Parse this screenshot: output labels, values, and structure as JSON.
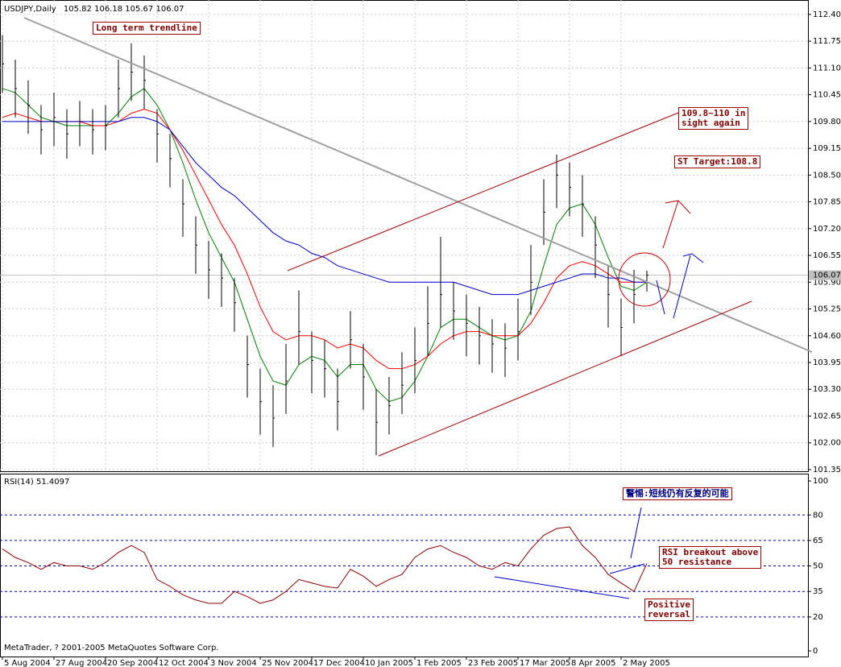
{
  "chart_data": [
    {
      "type": "ohlc",
      "title": "USDJPY,Daily",
      "last_bar": {
        "open": 105.82,
        "high": 106.18,
        "low": 105.67,
        "close": 106.07
      },
      "x": [
        0,
        4,
        8,
        12,
        16,
        20,
        24,
        28,
        32,
        36,
        40,
        44,
        48,
        52,
        56,
        60,
        64,
        68,
        72,
        76,
        80,
        84,
        88,
        92,
        96,
        100,
        104,
        108,
        112,
        116,
        120,
        124,
        128,
        132,
        136,
        140,
        144,
        148,
        152,
        156,
        160,
        164,
        168,
        172,
        176,
        180,
        184,
        188,
        192,
        196,
        200
      ],
      "high": [
        111.9,
        111.3,
        110.8,
        110.2,
        110.5,
        110.1,
        110.3,
        110.1,
        110.2,
        111.3,
        111.7,
        111.4,
        110.1,
        109.5,
        108.4,
        107.5,
        106.9,
        106.6,
        106.0,
        104.6,
        103.8,
        103.4,
        104.4,
        105.7,
        104.7,
        104.5,
        103.8,
        105.2,
        104.4,
        103.3,
        103.6,
        104.2,
        104.8,
        105.8,
        107.0,
        105.9,
        105.6,
        105.3,
        105.0,
        104.9,
        105.5,
        106.8,
        108.4,
        109.0,
        108.8,
        108.5,
        107.5,
        106.3,
        105.5,
        106.2,
        106.18
      ],
      "low": [
        110.5,
        109.9,
        109.5,
        109.0,
        109.2,
        108.9,
        109.2,
        109.0,
        109.1,
        109.9,
        110.3,
        110.1,
        108.8,
        108.2,
        107.0,
        106.1,
        105.5,
        105.3,
        104.7,
        103.1,
        102.2,
        101.9,
        102.7,
        103.9,
        103.2,
        103.1,
        102.3,
        103.8,
        102.8,
        101.7,
        102.2,
        102.7,
        103.2,
        104.1,
        104.8,
        104.5,
        104.1,
        103.9,
        103.7,
        103.6,
        104.0,
        105.1,
        106.8,
        107.7,
        107.5,
        107.0,
        106.0,
        104.8,
        104.1,
        104.9,
        105.67
      ],
      "close": [
        111.2,
        110.6,
        110.2,
        109.6,
        109.9,
        109.5,
        109.8,
        109.6,
        109.7,
        110.6,
        111.0,
        110.8,
        109.5,
        108.9,
        107.8,
        106.8,
        106.2,
        106.0,
        105.4,
        103.9,
        103.0,
        102.6,
        103.5,
        104.7,
        104.0,
        103.8,
        103.0,
        104.5,
        103.6,
        102.5,
        102.9,
        103.4,
        104.0,
        104.9,
        105.6,
        105.2,
        104.9,
        104.6,
        104.4,
        104.3,
        104.7,
        105.9,
        107.6,
        108.5,
        108.2,
        107.8,
        106.8,
        105.6,
        104.8,
        105.6,
        106.07
      ],
      "bar_color": "#000000",
      "moving_averages": [
        {
          "color": "#008000",
          "values": [
            110.6,
            110.5,
            110.2,
            109.9,
            109.8,
            109.7,
            109.7,
            109.7,
            109.7,
            110.0,
            110.4,
            110.6,
            110.2,
            109.6,
            108.8,
            107.9,
            107.1,
            106.5,
            105.9,
            105.0,
            104.1,
            103.5,
            103.4,
            103.9,
            104.1,
            104.0,
            103.6,
            103.9,
            103.9,
            103.3,
            103.0,
            103.1,
            103.5,
            104.1,
            104.8,
            105.0,
            105.0,
            104.8,
            104.6,
            104.5,
            104.6,
            105.2,
            106.3,
            107.3,
            107.7,
            107.8,
            107.3,
            106.5,
            105.8,
            105.7,
            105.9
          ]
        },
        {
          "color": "#ff0000",
          "values": [
            109.9,
            110.0,
            109.9,
            109.8,
            109.8,
            109.8,
            109.8,
            109.7,
            109.7,
            109.8,
            110.0,
            110.1,
            110.0,
            109.6,
            109.1,
            108.5,
            107.9,
            107.3,
            106.8,
            106.1,
            105.3,
            104.7,
            104.5,
            104.6,
            104.6,
            104.5,
            104.3,
            104.4,
            104.3,
            104.0,
            103.8,
            103.8,
            103.9,
            104.1,
            104.4,
            104.6,
            104.7,
            104.7,
            104.6,
            104.6,
            104.6,
            104.9,
            105.4,
            106.0,
            106.3,
            106.4,
            106.3,
            106.1,
            105.9,
            105.9,
            105.9
          ]
        },
        {
          "color": "#0000cc",
          "values": [
            109.8,
            109.8,
            109.8,
            109.8,
            109.8,
            109.8,
            109.8,
            109.8,
            109.8,
            109.8,
            109.9,
            109.9,
            109.8,
            109.6,
            109.2,
            108.8,
            108.5,
            108.2,
            108.0,
            107.7,
            107.4,
            107.1,
            106.9,
            106.8,
            106.6,
            106.5,
            106.3,
            106.2,
            106.1,
            106.0,
            105.9,
            105.9,
            105.9,
            105.9,
            105.9,
            105.9,
            105.8,
            105.7,
            105.6,
            105.6,
            105.6,
            105.7,
            105.8,
            105.9,
            106.0,
            106.1,
            106.1,
            106.0,
            106.0,
            105.9,
            105.9
          ]
        }
      ],
      "xlim": [
        -0.75,
        250
      ],
      "xticks": [
        {
          "value": 0,
          "label": "5 Aug 2004"
        },
        {
          "value": 16,
          "label": "27 Aug 2004"
        },
        {
          "value": 32,
          "label": "20 Sep 2004"
        },
        {
          "value": 48,
          "label": "12 Oct 2004"
        },
        {
          "value": 64,
          "label": "3 Nov 2004"
        },
        {
          "value": 80,
          "label": "25 Nov 2004"
        },
        {
          "value": 96,
          "label": "17 Dec 2004"
        },
        {
          "value": 112,
          "label": "10 Jan 2005"
        },
        {
          "value": 128,
          "label": "1 Feb 2005"
        },
        {
          "value": 144,
          "label": "23 Feb 2005"
        },
        {
          "value": 160,
          "label": "17 Mar 2005"
        },
        {
          "value": 176,
          "label": "8 Apr 2005"
        },
        {
          "value": 192,
          "label": "2 May 2005"
        }
      ],
      "ylim": [
        101.31,
        112.75
      ],
      "yticks": [
        {
          "value": 112.4,
          "label": "112.40"
        },
        111.75,
        {
          "value": 111.1,
          "label": "111.10"
        },
        110.45,
        {
          "value": 109.8,
          "label": "109.80"
        },
        109.15,
        {
          "value": 108.5,
          "label": "108.50"
        },
        107.85,
        {
          "value": 107.2,
          "label": "107.20"
        },
        106.55,
        {
          "value": 105.9,
          "label": "105.90"
        },
        105.25,
        {
          "value": 104.6,
          "label": "104.60"
        },
        103.95,
        {
          "value": 103.3,
          "label": "103.30"
        },
        102.65,
        {
          "value": 102.0,
          "label": "102.00"
        },
        101.35
      ],
      "grid": true,
      "annotations": [
        {
          "lines": [
            "Long term trendline"
          ]
        },
        {
          "lines": [
            "109.8~110 in",
            "sight again"
          ]
        },
        {
          "lines": [
            "ST Target:108.8"
          ]
        }
      ]
    },
    {
      "type": "line",
      "title": "RSI(14)",
      "last_value": 51.4097,
      "color": "#8b0000",
      "x": [
        0,
        4,
        8,
        12,
        16,
        20,
        24,
        28,
        32,
        36,
        40,
        44,
        48,
        52,
        56,
        60,
        64,
        68,
        72,
        76,
        80,
        84,
        88,
        92,
        96,
        100,
        104,
        108,
        112,
        116,
        120,
        124,
        128,
        132,
        136,
        140,
        144,
        148,
        152,
        156,
        160,
        164,
        168,
        172,
        176,
        180,
        184,
        188,
        192,
        196,
        200
      ],
      "values": [
        60,
        55,
        52,
        48,
        52,
        50,
        50,
        48,
        52,
        58,
        62,
        58,
        42,
        38,
        33,
        30,
        28,
        28,
        35,
        32,
        28,
        30,
        35,
        42,
        40,
        38,
        37,
        48,
        44,
        38,
        42,
        45,
        55,
        60,
        62,
        58,
        55,
        50,
        48,
        52,
        50,
        60,
        68,
        72,
        73,
        62,
        55,
        45,
        40,
        35,
        51.4097
      ],
      "xlim": [
        -0.75,
        250
      ],
      "ylim": [
        -3.3,
        104.3
      ],
      "yticks": [
        100,
        80,
        65,
        50,
        35,
        20,
        0
      ],
      "annotations": [
        {
          "lines": [
            "警惕:短线仍有反复的可能"
          ]
        },
        {
          "lines": [
            "RSI breakout above",
            "50 resistance"
          ]
        },
        {
          "lines": [
            "Positive",
            "reversal"
          ]
        }
      ]
    }
  ],
  "footer": "MetaTrader, ? 2001-2005 MetaQuotes Software Corp."
}
